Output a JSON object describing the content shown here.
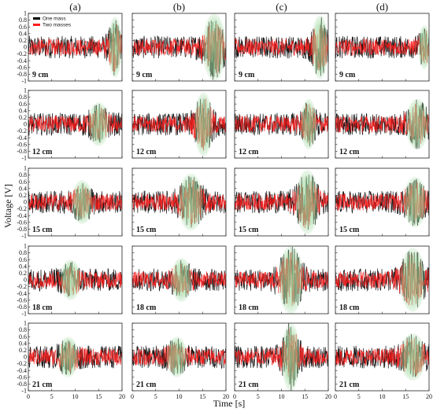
{
  "chart_data": {
    "type": "line",
    "layout": "grid 5 rows x 4 columns",
    "columns": [
      "(a)",
      "(b)",
      "(c)",
      "(d)"
    ],
    "rows": [
      "9 cm",
      "12 cm",
      "15 cm",
      "18 cm",
      "21 cm"
    ],
    "xlabel": "Time [s]",
    "ylabel": "Voltage [V]",
    "xlim": [
      0,
      20
    ],
    "ylim": [
      -1,
      1
    ],
    "xticks": [
      "0",
      "5",
      "10",
      "15",
      "20"
    ],
    "yticks": [
      "1",
      "0.8",
      "0.6",
      "0.4",
      "0.2",
      "0",
      "-0.2",
      "-0.4",
      "-0.6",
      "-0.8",
      "-1"
    ],
    "legend": {
      "placement": "top-left of first panel",
      "entries": [
        {
          "label": "One mass",
          "color": "#000000"
        },
        {
          "label": "Two masses",
          "color": "#ff1a1a"
        }
      ]
    },
    "series": [
      {
        "name": "One mass",
        "color": "#000000",
        "baseline_amplitude": 0.32
      },
      {
        "name": "Two masses",
        "color": "#ff1a1a",
        "baseline_amplitude": 0.28
      }
    ],
    "highlight": {
      "color": "#8fd08f",
      "description": "response region"
    },
    "panels": [
      [
        {
          "burst_center_s": 18.5,
          "burst_width_s": 3.0,
          "burst_peak": 0.85
        },
        {
          "burst_center_s": 17.5,
          "burst_width_s": 5.0,
          "burst_peak": 0.95
        },
        {
          "burst_center_s": 18.2,
          "burst_width_s": 3.6,
          "burst_peak": 0.9
        },
        {
          "burst_center_s": 19.0,
          "burst_width_s": 2.4,
          "burst_peak": 0.6
        }
      ],
      [
        {
          "burst_center_s": 15.0,
          "burst_width_s": 4.5,
          "burst_peak": 0.6
        },
        {
          "burst_center_s": 15.2,
          "burst_width_s": 4.0,
          "burst_peak": 0.9
        },
        {
          "burst_center_s": 15.8,
          "burst_width_s": 3.5,
          "burst_peak": 0.7
        },
        {
          "burst_center_s": 17.5,
          "burst_width_s": 5.0,
          "burst_peak": 0.7
        }
      ],
      [
        {
          "burst_center_s": 11.5,
          "burst_width_s": 4.5,
          "burst_peak": 0.6
        },
        {
          "burst_center_s": 12.5,
          "burst_width_s": 5.5,
          "burst_peak": 0.8
        },
        {
          "burst_center_s": 15.5,
          "burst_width_s": 5.0,
          "burst_peak": 0.9
        },
        {
          "burst_center_s": 17.0,
          "burst_width_s": 5.0,
          "burst_peak": 0.7
        }
      ],
      [
        {
          "burst_center_s": 9.0,
          "burst_width_s": 4.5,
          "burst_peak": 0.55
        },
        {
          "burst_center_s": 10.5,
          "burst_width_s": 4.5,
          "burst_peak": 0.6
        },
        {
          "burst_center_s": 12.0,
          "burst_width_s": 5.5,
          "burst_peak": 0.95
        },
        {
          "burst_center_s": 16.5,
          "burst_width_s": 5.5,
          "burst_peak": 0.9
        }
      ],
      [
        {
          "burst_center_s": 8.5,
          "burst_width_s": 4.5,
          "burst_peak": 0.55
        },
        {
          "burst_center_s": 9.5,
          "burst_width_s": 4.5,
          "burst_peak": 0.55
        },
        {
          "burst_center_s": 12.0,
          "burst_width_s": 4.0,
          "burst_peak": 1.0
        },
        {
          "burst_center_s": 16.5,
          "burst_width_s": 5.5,
          "burst_peak": 0.65
        }
      ]
    ]
  }
}
